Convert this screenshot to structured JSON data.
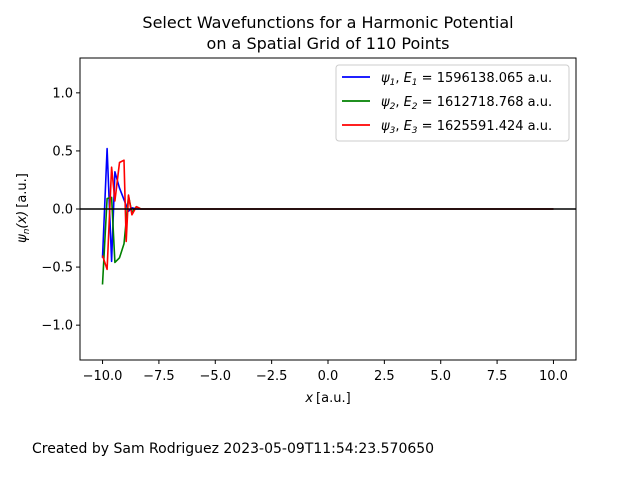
{
  "chart_data": {
    "type": "line",
    "title_line1": "Select Wavefunctions for a Harmonic Potential",
    "title_line2": "on a Spatial Grid of 110 Points",
    "xlabel": "x",
    "xlabel_unit": "[a.u.]",
    "ylabel": "ψ",
    "ylabel_sub": "n",
    "ylabel_arg": "(x)",
    "ylabel_unit": "[a.u.]",
    "xlim": [
      -11.0,
      11.0
    ],
    "ylim": [
      -1.3,
      1.3
    ],
    "xticks": [
      -10.0,
      -7.5,
      -5.0,
      -2.5,
      0.0,
      2.5,
      5.0,
      7.5,
      10.0
    ],
    "xtick_labels": [
      "−10.0",
      "−7.5",
      "−5.0",
      "−2.5",
      "0.0",
      "2.5",
      "5.0",
      "7.5",
      "10.0"
    ],
    "yticks": [
      -1.0,
      -0.5,
      0.0,
      0.5,
      1.0
    ],
    "ytick_labels": [
      "−1.0",
      "−0.5",
      "0.0",
      "0.5",
      "1.0"
    ],
    "grid": false,
    "legend_position": "top-right",
    "zero_line": {
      "y": 0,
      "color": "#000000"
    },
    "series": [
      {
        "name": "ψ1",
        "label_psi": "ψ",
        "label_psi_sub": "1",
        "label_e": "E",
        "label_e_sub": "1",
        "label_value": "= 1596138.065",
        "label_unit": "a.u.",
        "color": "#0000ff",
        "x": [
          -10.0,
          -9.8,
          -9.6,
          -9.45,
          -9.25,
          -9.05,
          -8.85,
          -8.7,
          -8.5,
          -8.3,
          -8.1,
          10.0
        ],
        "y": [
          -0.42,
          0.52,
          -0.45,
          0.32,
          0.18,
          0.08,
          -0.02,
          0.01,
          0.0,
          0.0,
          0.0,
          0.0
        ]
      },
      {
        "name": "ψ2",
        "label_psi": "ψ",
        "label_psi_sub": "2",
        "label_e": "E",
        "label_e_sub": "2",
        "label_value": "= 1612718.768",
        "label_unit": "a.u.",
        "color": "#008000",
        "x": [
          -10.0,
          -9.8,
          -9.6,
          -9.45,
          -9.25,
          -9.05,
          -8.85,
          -8.7,
          -8.5,
          -8.3,
          -8.1,
          10.0
        ],
        "y": [
          -0.65,
          0.09,
          0.1,
          -0.46,
          -0.42,
          -0.3,
          0.11,
          -0.03,
          0.02,
          0.0,
          0.0,
          0.0
        ]
      },
      {
        "name": "ψ3",
        "label_psi": "ψ",
        "label_psi_sub": "3",
        "label_e": "E",
        "label_e_sub": "3",
        "label_value": "= 1625591.424",
        "label_unit": "a.u.",
        "color": "#ff0000",
        "x": [
          -10.0,
          -9.8,
          -9.6,
          -9.45,
          -9.25,
          -9.05,
          -8.95,
          -8.85,
          -8.7,
          -8.5,
          -8.3,
          -8.1,
          10.0
        ],
        "y": [
          -0.4,
          -0.52,
          0.36,
          0.07,
          0.4,
          0.42,
          -0.28,
          0.12,
          -0.05,
          0.02,
          0.0,
          0.0,
          0.0
        ]
      }
    ]
  },
  "footer": "Created by Sam Rodriguez 2023-05-09T11:54:23.570650"
}
